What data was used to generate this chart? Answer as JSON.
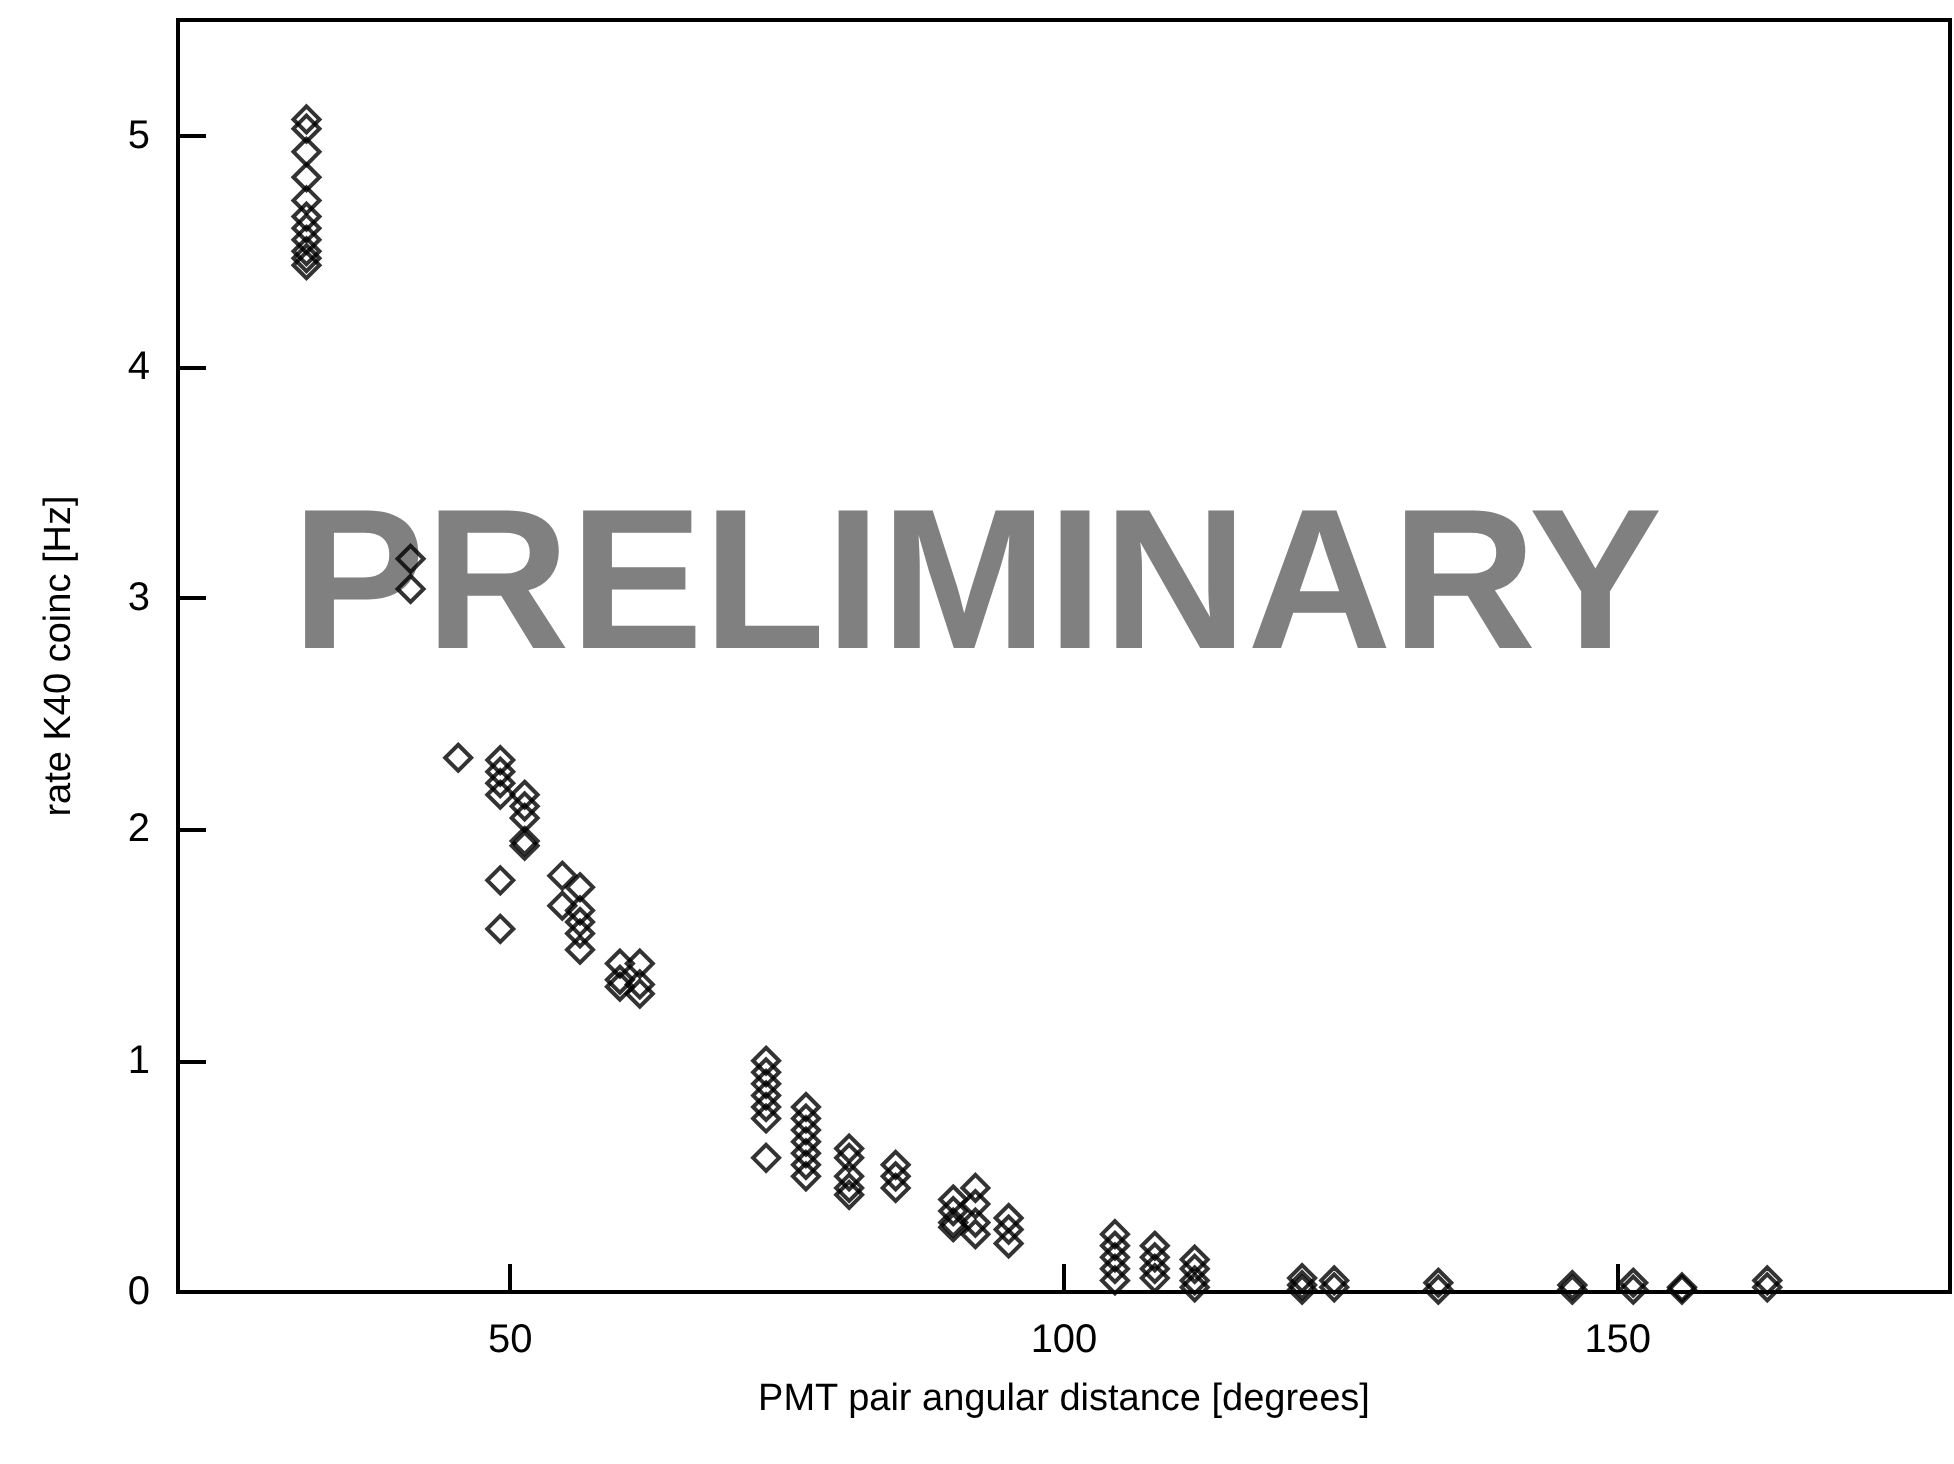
{
  "chart_data": {
    "type": "scatter",
    "xlabel": "PMT pair angular distance [degrees]",
    "ylabel": "rate K40 coinc [Hz]",
    "annotations": [
      "PRELIMINARY"
    ],
    "marker": "diamond",
    "xlim": [
      20,
      180
    ],
    "xticks": [
      50,
      100,
      150
    ],
    "ylim": [
      0,
      5.5
    ],
    "yticks": [
      0,
      1,
      2,
      3,
      4,
      5
    ],
    "grid": false,
    "series": [
      {
        "color": "#000000",
        "x": [
          31.6,
          31.6,
          31.6,
          31.6,
          31.6,
          31.6,
          31.6,
          31.6,
          31.6,
          31.6,
          31.6,
          41,
          41,
          45.3,
          49.1,
          49.1,
          49.1,
          49.1,
          49.1,
          49.1,
          51.3,
          51.3,
          51.3,
          51.3,
          51.3,
          54.7,
          54.7,
          56.3,
          56.3,
          56.3,
          56.3,
          56.3,
          59.9,
          59.9,
          59.9,
          61.7,
          61.7,
          61.7,
          73.1,
          73.1,
          73.1,
          73.1,
          73.1,
          73.1,
          73.1,
          76.7,
          76.7,
          76.7,
          76.7,
          76.7,
          76.7,
          76.7,
          80.6,
          80.6,
          80.6,
          80.6,
          80.6,
          84.8,
          84.8,
          84.8,
          90,
          90,
          90,
          90,
          92,
          92,
          92,
          92,
          95,
          95,
          95,
          104.6,
          104.6,
          104.6,
          104.6,
          104.6,
          108.2,
          108.2,
          108.2,
          108.2,
          111.8,
          111.8,
          111.8,
          111.8,
          121.5,
          121.5,
          121.5,
          124.4,
          124.4,
          133.8,
          133.8,
          145.9,
          145.9,
          151.4,
          151.4,
          155.8,
          155.8,
          163.5,
          163.5
        ],
        "values": [
          5.07,
          5.03,
          4.93,
          4.82,
          4.72,
          4.65,
          4.6,
          4.55,
          4.5,
          4.47,
          4.44,
          3.17,
          3.04,
          2.31,
          2.3,
          2.25,
          2.2,
          2.15,
          1.78,
          1.57,
          2.15,
          2.1,
          2.05,
          1.95,
          1.93,
          1.8,
          1.67,
          1.75,
          1.65,
          1.6,
          1.55,
          1.48,
          1.42,
          1.35,
          1.32,
          1.42,
          1.33,
          1.29,
          1.0,
          0.95,
          0.9,
          0.85,
          0.8,
          0.75,
          0.58,
          0.8,
          0.75,
          0.7,
          0.65,
          0.6,
          0.55,
          0.5,
          0.62,
          0.58,
          0.5,
          0.45,
          0.42,
          0.55,
          0.5,
          0.45,
          0.4,
          0.35,
          0.3,
          0.28,
          0.45,
          0.38,
          0.3,
          0.25,
          0.32,
          0.27,
          0.21,
          0.25,
          0.2,
          0.15,
          0.1,
          0.05,
          0.2,
          0.15,
          0.1,
          0.06,
          0.14,
          0.1,
          0.05,
          0.02,
          0.06,
          0.03,
          0.01,
          0.05,
          0.02,
          0.04,
          0.01,
          0.03,
          0.01,
          0.04,
          0.01,
          0.02,
          0.01,
          0.05,
          0.02
        ]
      }
    ]
  }
}
